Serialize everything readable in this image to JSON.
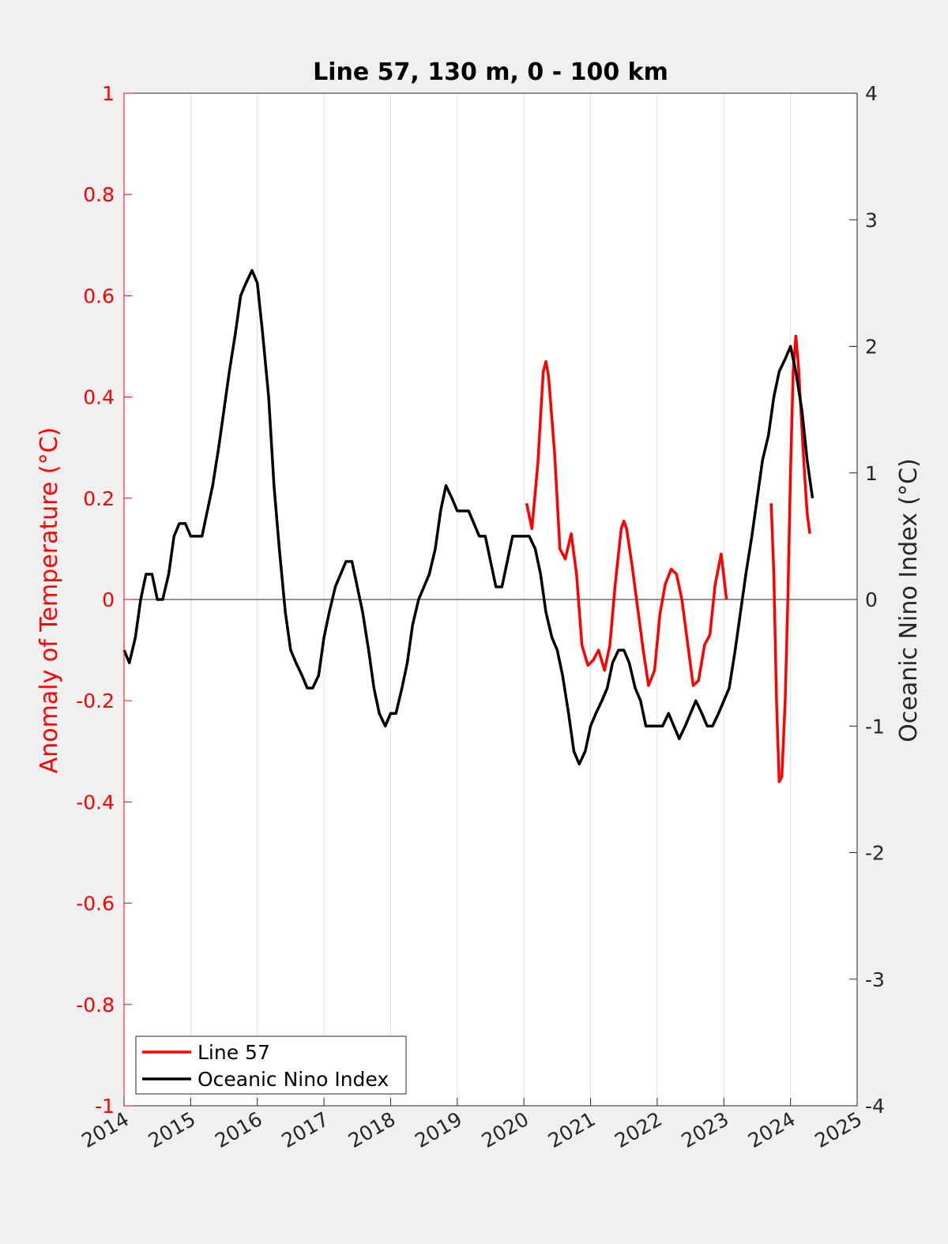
{
  "chart_data": {
    "type": "line",
    "title": "Line 57, 130 m, 0 - 100 km",
    "xlabel": "",
    "ylabel_left": "Anomaly of Temperature (°C)",
    "ylabel_right": "Oceanic Nino Index (°C)",
    "xlim": [
      2014,
      2025
    ],
    "ylim_left": [
      -1,
      1
    ],
    "ylim_right": [
      -4,
      4
    ],
    "x_ticks": [
      "2014",
      "2015",
      "2016",
      "2017",
      "2018",
      "2019",
      "2020",
      "2021",
      "2022",
      "2023",
      "2024",
      "2025"
    ],
    "y_ticks_left": [
      "-1",
      "-0.8",
      "-0.6",
      "-0.4",
      "-0.2",
      "0",
      "0.2",
      "0.4",
      "0.6",
      "0.8",
      "1"
    ],
    "y_ticks_right": [
      "-4",
      "-3",
      "-2",
      "-1",
      "0",
      "1",
      "2",
      "3",
      "4"
    ],
    "grid": "vertical",
    "zero_line": true,
    "legend_position": "bottom-left",
    "legend": [
      "Line 57",
      "Oceanic Nino Index"
    ],
    "colors": {
      "line57": "#ff0000",
      "oni": "#000000",
      "left_axis": "#ff0000",
      "right_axis": "#262626"
    },
    "series": [
      {
        "name": "Line 57",
        "axis": "left",
        "color": "#ff0000",
        "segments": [
          [
            [
              2020.04,
              0.19
            ],
            [
              2020.12,
              0.14
            ],
            [
              2020.21,
              0.27
            ],
            [
              2020.29,
              0.45
            ],
            [
              2020.33,
              0.47
            ],
            [
              2020.37,
              0.44
            ],
            [
              2020.46,
              0.29
            ],
            [
              2020.54,
              0.1
            ],
            [
              2020.62,
              0.08
            ],
            [
              2020.71,
              0.13
            ],
            [
              2020.79,
              0.05
            ],
            [
              2020.87,
              -0.09
            ],
            [
              2020.96,
              -0.13
            ],
            [
              2021.04,
              -0.12
            ],
            [
              2021.12,
              -0.1
            ],
            [
              2021.21,
              -0.14
            ],
            [
              2021.29,
              -0.09
            ],
            [
              2021.37,
              0.03
            ],
            [
              2021.46,
              0.14
            ],
            [
              2021.5,
              0.155
            ],
            [
              2021.54,
              0.14
            ],
            [
              2021.62,
              0.07
            ],
            [
              2021.71,
              -0.02
            ],
            [
              2021.79,
              -0.1
            ],
            [
              2021.87,
              -0.17
            ],
            [
              2021.96,
              -0.14
            ],
            [
              2022.04,
              -0.03
            ],
            [
              2022.12,
              0.03
            ],
            [
              2022.21,
              0.06
            ],
            [
              2022.29,
              0.05
            ],
            [
              2022.37,
              0.0
            ],
            [
              2022.46,
              -0.09
            ],
            [
              2022.54,
              -0.17
            ],
            [
              2022.62,
              -0.16
            ],
            [
              2022.71,
              -0.09
            ],
            [
              2022.79,
              -0.07
            ],
            [
              2022.87,
              0.03
            ],
            [
              2022.96,
              0.09
            ],
            [
              2023.04,
              0.0
            ]
          ],
          [
            [
              2023.71,
              0.19
            ],
            [
              2023.75,
              0.05
            ],
            [
              2023.79,
              -0.2
            ],
            [
              2023.83,
              -0.36
            ],
            [
              2023.87,
              -0.35
            ],
            [
              2023.92,
              -0.2
            ],
            [
              2023.96,
              0.0
            ],
            [
              2024.0,
              0.25
            ],
            [
              2024.04,
              0.45
            ],
            [
              2024.08,
              0.52
            ],
            [
              2024.12,
              0.46
            ],
            [
              2024.17,
              0.34
            ],
            [
              2024.21,
              0.25
            ],
            [
              2024.25,
              0.17
            ],
            [
              2024.29,
              0.13
            ]
          ]
        ]
      },
      {
        "name": "Oceanic Nino Index",
        "axis": "right",
        "color": "#000000",
        "points": [
          [
            2014.0,
            -0.4
          ],
          [
            2014.08,
            -0.5
          ],
          [
            2014.17,
            -0.3
          ],
          [
            2014.25,
            0.0
          ],
          [
            2014.33,
            0.2
          ],
          [
            2014.42,
            0.2
          ],
          [
            2014.5,
            0.0
          ],
          [
            2014.58,
            0.0
          ],
          [
            2014.67,
            0.2
          ],
          [
            2014.75,
            0.5
          ],
          [
            2014.83,
            0.6
          ],
          [
            2014.92,
            0.6
          ],
          [
            2015.0,
            0.5
          ],
          [
            2015.08,
            0.5
          ],
          [
            2015.17,
            0.5
          ],
          [
            2015.25,
            0.7
          ],
          [
            2015.33,
            0.9
          ],
          [
            2015.42,
            1.2
          ],
          [
            2015.5,
            1.5
          ],
          [
            2015.58,
            1.8
          ],
          [
            2015.67,
            2.1
          ],
          [
            2015.75,
            2.4
          ],
          [
            2015.83,
            2.5
          ],
          [
            2015.92,
            2.6
          ],
          [
            2016.0,
            2.5
          ],
          [
            2016.08,
            2.1
          ],
          [
            2016.17,
            1.6
          ],
          [
            2016.25,
            0.9
          ],
          [
            2016.33,
            0.4
          ],
          [
            2016.42,
            -0.1
          ],
          [
            2016.5,
            -0.4
          ],
          [
            2016.58,
            -0.5
          ],
          [
            2016.67,
            -0.6
          ],
          [
            2016.75,
            -0.7
          ],
          [
            2016.83,
            -0.7
          ],
          [
            2016.92,
            -0.6
          ],
          [
            2017.0,
            -0.3
          ],
          [
            2017.08,
            -0.1
          ],
          [
            2017.17,
            0.1
          ],
          [
            2017.25,
            0.2
          ],
          [
            2017.33,
            0.3
          ],
          [
            2017.42,
            0.3
          ],
          [
            2017.5,
            0.1
          ],
          [
            2017.58,
            -0.1
          ],
          [
            2017.67,
            -0.4
          ],
          [
            2017.75,
            -0.7
          ],
          [
            2017.83,
            -0.9
          ],
          [
            2017.92,
            -1.0
          ],
          [
            2018.0,
            -0.9
          ],
          [
            2018.08,
            -0.9
          ],
          [
            2018.17,
            -0.7
          ],
          [
            2018.25,
            -0.5
          ],
          [
            2018.33,
            -0.2
          ],
          [
            2018.42,
            0.0
          ],
          [
            2018.5,
            0.1
          ],
          [
            2018.58,
            0.2
          ],
          [
            2018.67,
            0.4
          ],
          [
            2018.75,
            0.7
          ],
          [
            2018.83,
            0.9
          ],
          [
            2018.92,
            0.8
          ],
          [
            2019.0,
            0.7
          ],
          [
            2019.08,
            0.7
          ],
          [
            2019.17,
            0.7
          ],
          [
            2019.25,
            0.6
          ],
          [
            2019.33,
            0.5
          ],
          [
            2019.42,
            0.5
          ],
          [
            2019.5,
            0.3
          ],
          [
            2019.58,
            0.1
          ],
          [
            2019.67,
            0.1
          ],
          [
            2019.75,
            0.3
          ],
          [
            2019.83,
            0.5
          ],
          [
            2019.92,
            0.5
          ],
          [
            2020.0,
            0.5
          ],
          [
            2020.08,
            0.5
          ],
          [
            2020.17,
            0.4
          ],
          [
            2020.25,
            0.2
          ],
          [
            2020.33,
            -0.1
          ],
          [
            2020.42,
            -0.3
          ],
          [
            2020.5,
            -0.4
          ],
          [
            2020.58,
            -0.6
          ],
          [
            2020.67,
            -0.9
          ],
          [
            2020.75,
            -1.2
          ],
          [
            2020.83,
            -1.3
          ],
          [
            2020.92,
            -1.2
          ],
          [
            2021.0,
            -1.0
          ],
          [
            2021.08,
            -0.9
          ],
          [
            2021.17,
            -0.8
          ],
          [
            2021.25,
            -0.7
          ],
          [
            2021.33,
            -0.5
          ],
          [
            2021.42,
            -0.4
          ],
          [
            2021.5,
            -0.4
          ],
          [
            2021.58,
            -0.5
          ],
          [
            2021.67,
            -0.7
          ],
          [
            2021.75,
            -0.8
          ],
          [
            2021.83,
            -1.0
          ],
          [
            2021.92,
            -1.0
          ],
          [
            2022.0,
            -1.0
          ],
          [
            2022.08,
            -1.0
          ],
          [
            2022.17,
            -0.9
          ],
          [
            2022.25,
            -1.0
          ],
          [
            2022.33,
            -1.1
          ],
          [
            2022.42,
            -1.0
          ],
          [
            2022.5,
            -0.9
          ],
          [
            2022.58,
            -0.8
          ],
          [
            2022.67,
            -0.9
          ],
          [
            2022.75,
            -1.0
          ],
          [
            2022.83,
            -1.0
          ],
          [
            2022.92,
            -0.9
          ],
          [
            2023.0,
            -0.8
          ],
          [
            2023.08,
            -0.7
          ],
          [
            2023.17,
            -0.4
          ],
          [
            2023.25,
            -0.1
          ],
          [
            2023.33,
            0.2
          ],
          [
            2023.42,
            0.5
          ],
          [
            2023.5,
            0.8
          ],
          [
            2023.58,
            1.1
          ],
          [
            2023.67,
            1.3
          ],
          [
            2023.75,
            1.6
          ],
          [
            2023.83,
            1.8
          ],
          [
            2023.92,
            1.9
          ],
          [
            2024.0,
            2.0
          ],
          [
            2024.08,
            1.8
          ],
          [
            2024.17,
            1.5
          ],
          [
            2024.25,
            1.1
          ],
          [
            2024.33,
            0.8
          ]
        ]
      }
    ]
  }
}
